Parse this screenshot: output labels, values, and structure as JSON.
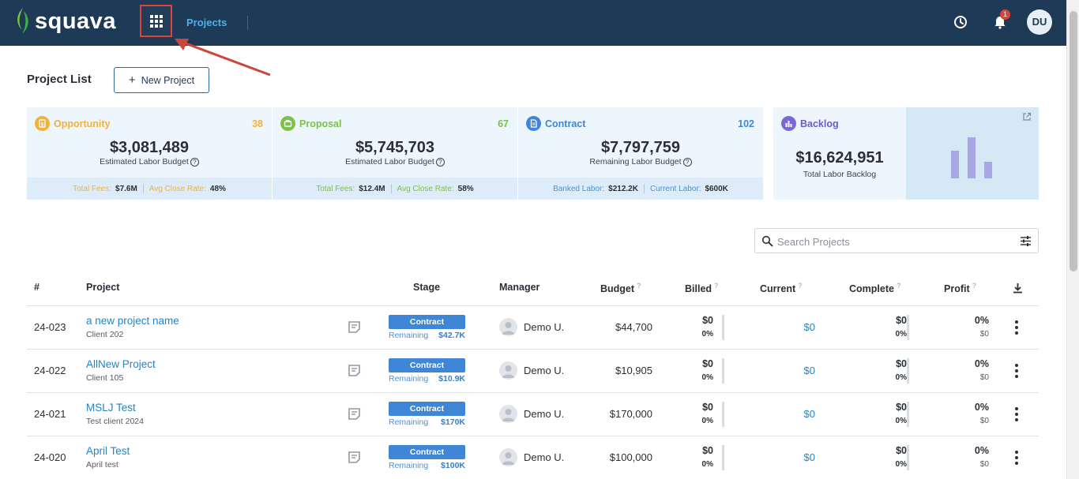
{
  "header": {
    "brand": "squava",
    "nav_projects": "Projects",
    "notification_count": "1",
    "user_initials": "DU"
  },
  "page": {
    "title": "Project List",
    "new_project_label": "New Project"
  },
  "cards": {
    "opportunity": {
      "label": "Opportunity",
      "count": "38",
      "amount": "$3,081,489",
      "sub": "Estimated Labor Budget",
      "k1": "Total Fees:",
      "v1": "$7.6M",
      "k2": "Avg Close Rate:",
      "v2": "48%",
      "color": "#f0b23a"
    },
    "proposal": {
      "label": "Proposal",
      "count": "67",
      "amount": "$5,745,703",
      "sub": "Estimated Labor Budget",
      "k1": "Total Fees:",
      "v1": "$12.4M",
      "k2": "Avg Close Rate:",
      "v2": "58%",
      "color": "#7cc243"
    },
    "contract": {
      "label": "Contract",
      "count": "102",
      "amount": "$7,797,759",
      "sub": "Remaining Labor Budget",
      "k1": "Banked Labor:",
      "v1": "$212.2K",
      "k2": "Current Labor:",
      "v2": "$600K",
      "color": "#3f86d6"
    },
    "backlog": {
      "label": "Backlog",
      "amount": "$16,624,951",
      "sub": "Total Labor Backlog",
      "color": "#7b68d6"
    }
  },
  "search": {
    "placeholder": "Search Projects"
  },
  "table": {
    "columns": {
      "num": "#",
      "project": "Project",
      "stage": "Stage",
      "manager": "Manager",
      "budget": "Budget",
      "billed": "Billed",
      "current": "Current",
      "complete": "Complete",
      "profit": "Profit",
      "help": "?"
    },
    "rows": [
      {
        "num": "24-023",
        "name": "a new project name",
        "client": "Client 202",
        "stage": "Contract",
        "rem_label": "Remaining",
        "rem_value": "$42.7K",
        "manager": "Demo U.",
        "budget": "$44,700",
        "billed": "$0",
        "billed_pct": "0%",
        "current": "$0",
        "complete": "$0",
        "complete_pct": "0%",
        "profit": "0%",
        "profit_amt": "$0"
      },
      {
        "num": "24-022",
        "name": "AllNew Project",
        "client": "Client 105",
        "stage": "Contract",
        "rem_label": "Remaining",
        "rem_value": "$10.9K",
        "manager": "Demo U.",
        "budget": "$10,905",
        "billed": "$0",
        "billed_pct": "0%",
        "current": "$0",
        "complete": "$0",
        "complete_pct": "0%",
        "profit": "0%",
        "profit_amt": "$0"
      },
      {
        "num": "24-021",
        "name": "MSLJ Test",
        "client": "Test client 2024",
        "stage": "Contract",
        "rem_label": "Remaining",
        "rem_value": "$170K",
        "manager": "Demo U.",
        "budget": "$170,000",
        "billed": "$0",
        "billed_pct": "0%",
        "current": "$0",
        "complete": "$0",
        "complete_pct": "0%",
        "profit": "0%",
        "profit_amt": "$0"
      },
      {
        "num": "24-020",
        "name": "April Test",
        "client": "April test",
        "stage": "Contract",
        "rem_label": "Remaining",
        "rem_value": "$100K",
        "manager": "Demo U.",
        "budget": "$100,000",
        "billed": "$0",
        "billed_pct": "0%",
        "current": "$0",
        "complete": "$0",
        "complete_pct": "0%",
        "profit": "0%",
        "profit_amt": "$0"
      }
    ]
  }
}
